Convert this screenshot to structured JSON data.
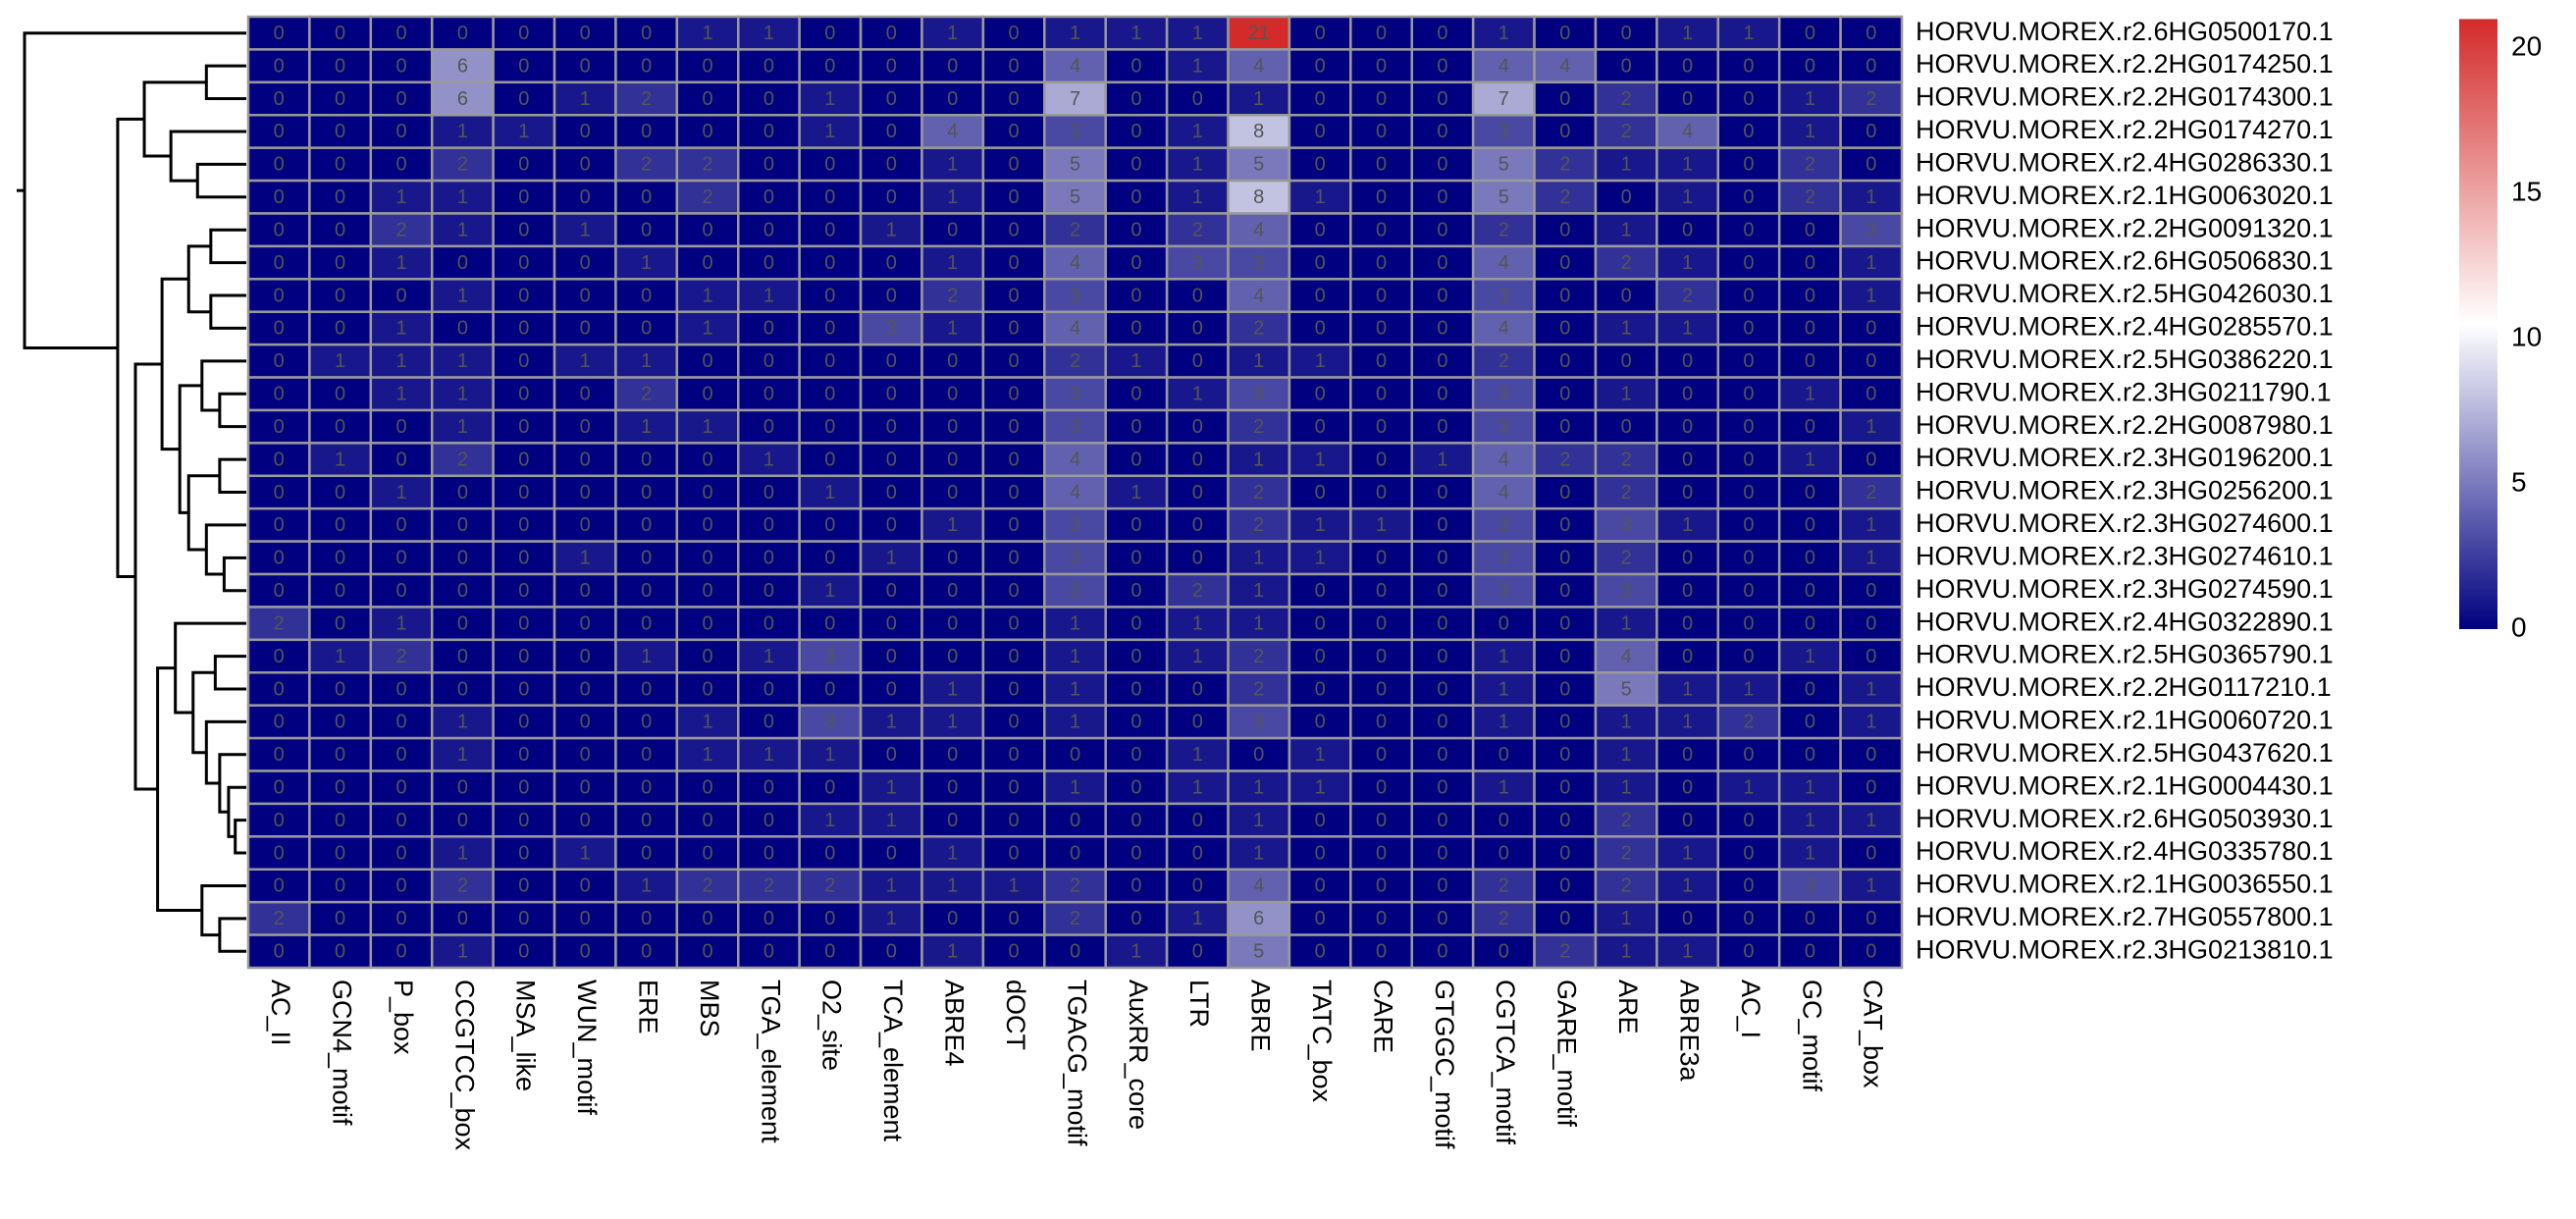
{
  "chart_data": {
    "type": "heatmap",
    "rows": [
      "HORVU.MOREX.r2.6HG0500170.1",
      "HORVU.MOREX.r2.2HG0174250.1",
      "HORVU.MOREX.r2.2HG0174300.1",
      "HORVU.MOREX.r2.2HG0174270.1",
      "HORVU.MOREX.r2.4HG0286330.1",
      "HORVU.MOREX.r2.1HG0063020.1",
      "HORVU.MOREX.r2.2HG0091320.1",
      "HORVU.MOREX.r2.6HG0506830.1",
      "HORVU.MOREX.r2.5HG0426030.1",
      "HORVU.MOREX.r2.4HG0285570.1",
      "HORVU.MOREX.r2.5HG0386220.1",
      "HORVU.MOREX.r2.3HG0211790.1",
      "HORVU.MOREX.r2.2HG0087980.1",
      "HORVU.MOREX.r2.3HG0196200.1",
      "HORVU.MOREX.r2.3HG0256200.1",
      "HORVU.MOREX.r2.3HG0274600.1",
      "HORVU.MOREX.r2.3HG0274610.1",
      "HORVU.MOREX.r2.3HG0274590.1",
      "HORVU.MOREX.r2.4HG0322890.1",
      "HORVU.MOREX.r2.5HG0365790.1",
      "HORVU.MOREX.r2.2HG0117210.1",
      "HORVU.MOREX.r2.1HG0060720.1",
      "HORVU.MOREX.r2.5HG0437620.1",
      "HORVU.MOREX.r2.1HG0004430.1",
      "HORVU.MOREX.r2.6HG0503930.1",
      "HORVU.MOREX.r2.4HG0335780.1",
      "HORVU.MOREX.r2.1HG0036550.1",
      "HORVU.MOREX.r2.7HG0557800.1",
      "HORVU.MOREX.r2.3HG0213810.1"
    ],
    "columns": [
      "AC_II",
      "GCN4_motif",
      "P_box",
      "CCGTCC_box",
      "MSA_like",
      "WUN_motif",
      "ERE",
      "MBS",
      "TGA_element",
      "O2_site",
      "TCA_element",
      "ABRE4",
      "dOCT",
      "TGACG_motif",
      "AuxRR_core",
      "LTR",
      "ABRE",
      "TATC_box",
      "CARE",
      "GTGGC_motif",
      "CGTCA_motif",
      "GARE_motif",
      "ARE",
      "ABRE3a",
      "AC_I",
      "GC_motif",
      "CAT_box"
    ],
    "values": [
      [
        0,
        0,
        0,
        0,
        0,
        0,
        0,
        1,
        1,
        0,
        0,
        1,
        0,
        1,
        1,
        1,
        21,
        0,
        0,
        0,
        1,
        0,
        0,
        1,
        1,
        0,
        0
      ],
      [
        0,
        0,
        0,
        6,
        0,
        0,
        0,
        0,
        0,
        0,
        0,
        0,
        0,
        4,
        0,
        1,
        4,
        0,
        0,
        0,
        4,
        4,
        0,
        0,
        0,
        0,
        0
      ],
      [
        0,
        0,
        0,
        6,
        0,
        1,
        2,
        0,
        0,
        1,
        0,
        0,
        0,
        7,
        0,
        0,
        1,
        0,
        0,
        0,
        7,
        0,
        2,
        0,
        0,
        1,
        2
      ],
      [
        0,
        0,
        0,
        1,
        1,
        0,
        0,
        0,
        0,
        1,
        0,
        4,
        0,
        3,
        0,
        1,
        8,
        0,
        0,
        0,
        3,
        0,
        2,
        4,
        0,
        1,
        0
      ],
      [
        0,
        0,
        0,
        2,
        0,
        0,
        2,
        2,
        0,
        0,
        0,
        1,
        0,
        5,
        0,
        1,
        5,
        0,
        0,
        0,
        5,
        2,
        1,
        1,
        0,
        2,
        0
      ],
      [
        0,
        0,
        1,
        1,
        0,
        0,
        0,
        2,
        0,
        0,
        0,
        1,
        0,
        5,
        0,
        1,
        8,
        1,
        0,
        0,
        5,
        2,
        0,
        1,
        0,
        2,
        1
      ],
      [
        0,
        0,
        2,
        1,
        0,
        1,
        0,
        0,
        0,
        0,
        1,
        0,
        0,
        2,
        0,
        2,
        4,
        0,
        0,
        0,
        2,
        0,
        1,
        0,
        0,
        0,
        3
      ],
      [
        0,
        0,
        1,
        0,
        0,
        0,
        1,
        0,
        0,
        0,
        0,
        1,
        0,
        4,
        0,
        3,
        3,
        0,
        0,
        0,
        4,
        0,
        2,
        1,
        0,
        0,
        1
      ],
      [
        0,
        0,
        0,
        1,
        0,
        0,
        0,
        1,
        1,
        0,
        0,
        2,
        0,
        3,
        0,
        0,
        4,
        0,
        0,
        0,
        3,
        0,
        0,
        2,
        0,
        0,
        1
      ],
      [
        0,
        0,
        1,
        0,
        0,
        0,
        0,
        1,
        0,
        0,
        3,
        1,
        0,
        4,
        0,
        0,
        2,
        0,
        0,
        0,
        4,
        0,
        1,
        1,
        0,
        0,
        0
      ],
      [
        0,
        1,
        1,
        1,
        0,
        1,
        1,
        0,
        0,
        0,
        0,
        0,
        0,
        2,
        1,
        0,
        1,
        1,
        0,
        0,
        2,
        0,
        0,
        0,
        0,
        0,
        0
      ],
      [
        0,
        0,
        1,
        1,
        0,
        0,
        2,
        0,
        0,
        0,
        0,
        0,
        0,
        3,
        0,
        1,
        3,
        0,
        0,
        0,
        3,
        0,
        1,
        0,
        0,
        1,
        0
      ],
      [
        0,
        0,
        0,
        1,
        0,
        0,
        1,
        1,
        0,
        0,
        0,
        0,
        0,
        3,
        0,
        0,
        2,
        0,
        0,
        0,
        3,
        0,
        0,
        0,
        0,
        0,
        1
      ],
      [
        0,
        1,
        0,
        2,
        0,
        0,
        0,
        0,
        1,
        0,
        0,
        0,
        0,
        4,
        0,
        0,
        1,
        1,
        0,
        1,
        4,
        2,
        2,
        0,
        0,
        1,
        0
      ],
      [
        0,
        0,
        1,
        0,
        0,
        0,
        0,
        0,
        0,
        1,
        0,
        0,
        0,
        4,
        1,
        0,
        2,
        0,
        0,
        0,
        4,
        0,
        2,
        0,
        0,
        0,
        2
      ],
      [
        0,
        0,
        0,
        0,
        0,
        0,
        0,
        0,
        0,
        0,
        0,
        1,
        0,
        3,
        0,
        0,
        2,
        1,
        1,
        0,
        3,
        0,
        3,
        1,
        0,
        0,
        1
      ],
      [
        0,
        0,
        0,
        0,
        0,
        1,
        0,
        0,
        0,
        0,
        1,
        0,
        0,
        3,
        0,
        0,
        1,
        1,
        0,
        0,
        3,
        0,
        2,
        0,
        0,
        0,
        1
      ],
      [
        0,
        0,
        0,
        0,
        0,
        0,
        0,
        0,
        0,
        1,
        0,
        0,
        0,
        3,
        0,
        2,
        1,
        0,
        0,
        0,
        3,
        0,
        3,
        0,
        0,
        0,
        0
      ],
      [
        2,
        0,
        1,
        0,
        0,
        0,
        0,
        0,
        0,
        0,
        0,
        0,
        0,
        1,
        0,
        1,
        1,
        0,
        0,
        0,
        0,
        0,
        1,
        0,
        0,
        0,
        0
      ],
      [
        0,
        1,
        2,
        0,
        0,
        0,
        1,
        0,
        1,
        3,
        0,
        0,
        0,
        1,
        0,
        1,
        2,
        0,
        0,
        0,
        1,
        0,
        4,
        0,
        0,
        1,
        0
      ],
      [
        0,
        0,
        0,
        0,
        0,
        0,
        0,
        0,
        0,
        0,
        0,
        1,
        0,
        1,
        0,
        0,
        2,
        0,
        0,
        0,
        1,
        0,
        5,
        1,
        1,
        0,
        1
      ],
      [
        0,
        0,
        0,
        1,
        0,
        0,
        0,
        1,
        0,
        3,
        1,
        1,
        0,
        1,
        0,
        0,
        3,
        0,
        0,
        0,
        1,
        0,
        1,
        1,
        2,
        0,
        1
      ],
      [
        0,
        0,
        0,
        1,
        0,
        0,
        0,
        1,
        1,
        1,
        0,
        0,
        0,
        0,
        0,
        1,
        0,
        1,
        0,
        0,
        0,
        0,
        1,
        0,
        0,
        0,
        0
      ],
      [
        0,
        0,
        0,
        0,
        0,
        0,
        0,
        0,
        0,
        0,
        1,
        0,
        0,
        1,
        0,
        1,
        1,
        1,
        0,
        0,
        1,
        0,
        1,
        0,
        1,
        1,
        0
      ],
      [
        0,
        0,
        0,
        0,
        0,
        0,
        0,
        0,
        0,
        1,
        1,
        0,
        0,
        0,
        0,
        0,
        1,
        0,
        0,
        0,
        0,
        0,
        2,
        0,
        0,
        1,
        1
      ],
      [
        0,
        0,
        0,
        1,
        0,
        1,
        0,
        0,
        0,
        0,
        0,
        1,
        0,
        0,
        0,
        0,
        1,
        0,
        0,
        0,
        0,
        0,
        2,
        1,
        0,
        1,
        0
      ],
      [
        0,
        0,
        0,
        2,
        0,
        0,
        1,
        2,
        2,
        2,
        1,
        1,
        1,
        2,
        0,
        0,
        4,
        0,
        0,
        0,
        2,
        0,
        2,
        1,
        0,
        3,
        1
      ],
      [
        2,
        0,
        0,
        0,
        0,
        0,
        0,
        0,
        0,
        0,
        1,
        0,
        0,
        2,
        0,
        1,
        6,
        0,
        0,
        0,
        2,
        0,
        1,
        0,
        0,
        0,
        0
      ],
      [
        0,
        0,
        0,
        1,
        0,
        0,
        0,
        0,
        0,
        0,
        0,
        1,
        0,
        0,
        1,
        0,
        5,
        0,
        0,
        0,
        0,
        2,
        1,
        1,
        0,
        0,
        0
      ]
    ],
    "colors": [
      "#000080",
      "#ffffff",
      "#d42a2a"
    ],
    "clim": [
      0,
      21
    ],
    "cticks": [
      0,
      5,
      10,
      15,
      20
    ]
  }
}
